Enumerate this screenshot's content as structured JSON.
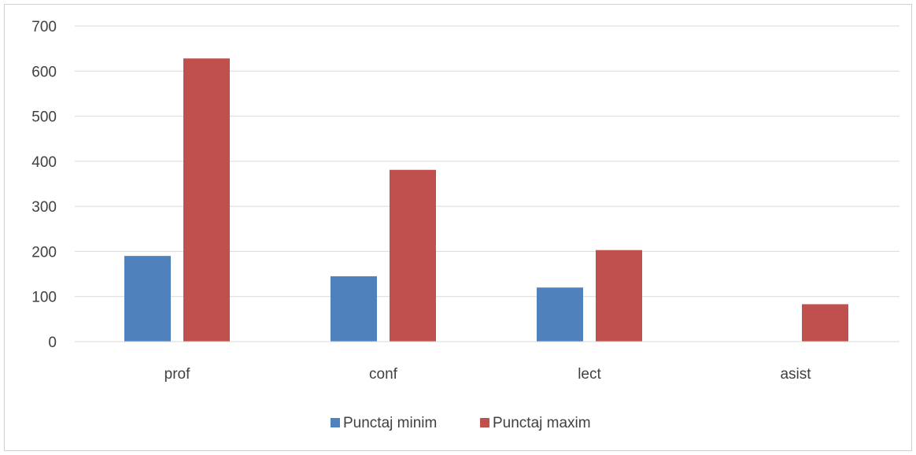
{
  "chart_data": {
    "type": "bar",
    "categories": [
      "prof",
      "conf",
      "lect",
      "asist"
    ],
    "series": [
      {
        "name": "Punctaj minim",
        "values": [
          190,
          145,
          120,
          0
        ],
        "color": "#4f81bd"
      },
      {
        "name": "Punctaj maxim",
        "values": [
          628,
          381,
          203,
          83
        ],
        "color": "#c0504d"
      }
    ],
    "title": "",
    "xlabel": "",
    "ylabel": "",
    "ylim": [
      0,
      700
    ],
    "yticks": [
      0,
      100,
      200,
      300,
      400,
      500,
      600,
      700
    ],
    "grid": true,
    "legend_position": "bottom"
  }
}
